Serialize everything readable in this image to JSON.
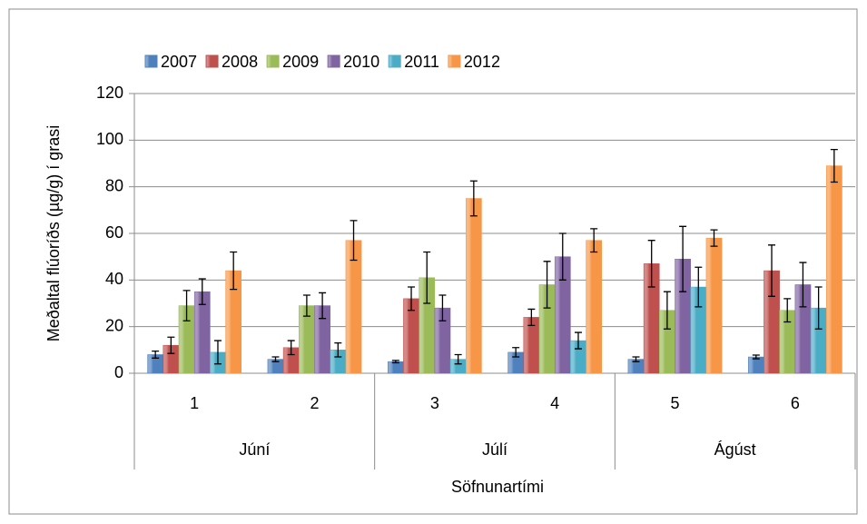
{
  "chart_data": {
    "type": "bar",
    "x_label": "Söfnunartími",
    "y_label": "Meðaltal flúoríðs (µg/g) í grasi",
    "categories": [
      "1",
      "2",
      "3",
      "4",
      "5",
      "6"
    ],
    "category_group": [
      "Júní",
      "Júní",
      "Júlí",
      "Júlí",
      "Ágúst",
      "Ágúst"
    ],
    "ylim": [
      0,
      120
    ],
    "yticks": [
      0,
      20,
      40,
      60,
      80,
      100,
      120
    ],
    "grid": true,
    "legend": "top",
    "series": [
      {
        "name": "2007",
        "color": "#4f81bd",
        "values": [
          8,
          6,
          5,
          9,
          6,
          7
        ],
        "errors": [
          1.5,
          1,
          0.5,
          2,
          1,
          0.8
        ]
      },
      {
        "name": "2008",
        "color": "#c0504d",
        "values": [
          12,
          11,
          32,
          24,
          47,
          44
        ],
        "errors": [
          3.5,
          3,
          5,
          3.5,
          10,
          11
        ]
      },
      {
        "name": "2009",
        "color": "#9bbb59",
        "values": [
          29,
          29,
          41,
          38,
          27,
          27
        ],
        "errors": [
          6.5,
          4.5,
          11,
          10,
          8,
          5
        ]
      },
      {
        "name": "2010",
        "color": "#8064a2",
        "values": [
          35,
          29,
          28,
          50,
          49,
          38
        ],
        "errors": [
          5.5,
          5.5,
          5.5,
          10,
          14,
          9.5
        ]
      },
      {
        "name": "2011",
        "color": "#4bacc6",
        "values": [
          9,
          10,
          6,
          14,
          37,
          28
        ],
        "errors": [
          5,
          3,
          2,
          3.5,
          8.5,
          9
        ]
      },
      {
        "name": "2012",
        "color": "#f79646",
        "values": [
          44,
          57,
          75,
          57,
          58,
          89
        ],
        "errors": [
          8,
          8.5,
          7.5,
          5,
          3.5,
          7
        ]
      }
    ]
  }
}
